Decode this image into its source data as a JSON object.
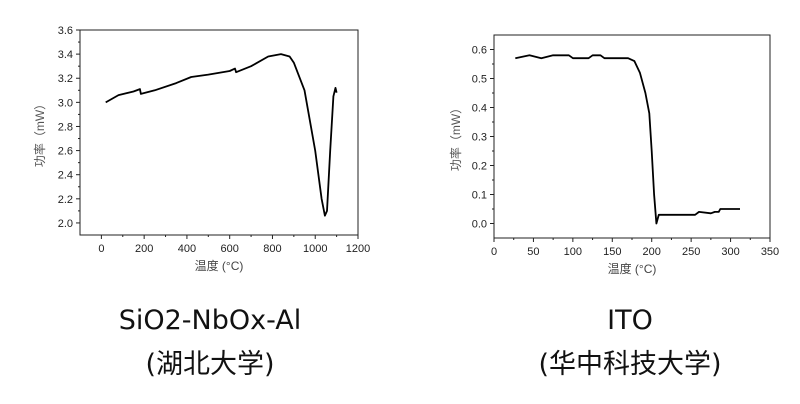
{
  "chart_data": [
    {
      "type": "line",
      "title": "SiO2-NbOx-Al",
      "subtitle": "(湖北大学)",
      "xlabel": "温度 (°C)",
      "ylabel": "功率（mW）",
      "xlim": [
        -100,
        1200
      ],
      "ylim": [
        1.9,
        3.6
      ],
      "xticks": [
        0,
        200,
        400,
        600,
        800,
        1000,
        1200
      ],
      "xtick_labels": [
        "0",
        "200",
        "400",
        "600",
        "800",
        "1000",
        "1200"
      ],
      "yticks": [
        2.0,
        2.2,
        2.4,
        2.6,
        2.8,
        3.0,
        3.2,
        3.4,
        3.6
      ],
      "ytick_labels": [
        "2.0",
        "2.2",
        "2.4",
        "2.6",
        "2.8",
        "3.0",
        "3.2",
        "3.4",
        "3.6"
      ],
      "grid": false,
      "series": [
        {
          "name": "SiO2-NbOx-Al",
          "color": "#000000",
          "x": [
            20,
            80,
            150,
            180,
            185,
            250,
            350,
            420,
            500,
            600,
            625,
            630,
            700,
            780,
            840,
            880,
            900,
            950,
            1000,
            1030,
            1045,
            1055,
            1070,
            1085,
            1095,
            1100
          ],
          "y": [
            3.0,
            3.06,
            3.09,
            3.11,
            3.07,
            3.1,
            3.16,
            3.21,
            3.23,
            3.26,
            3.28,
            3.25,
            3.3,
            3.38,
            3.4,
            3.38,
            3.33,
            3.1,
            2.6,
            2.2,
            2.06,
            2.1,
            2.6,
            3.05,
            3.12,
            3.08
          ]
        }
      ]
    },
    {
      "type": "line",
      "title": "ITO",
      "subtitle": "(华中科技大学)",
      "xlabel": "温度 (°C)",
      "ylabel": "功率（mW）",
      "xlim": [
        0,
        350
      ],
      "ylim": [
        -0.05,
        0.65
      ],
      "xticks": [
        0,
        50,
        100,
        150,
        200,
        250,
        300,
        350
      ],
      "xtick_labels": [
        "0",
        "50",
        "100",
        "150",
        "200",
        "250",
        "300",
        "350"
      ],
      "yticks": [
        0.0,
        0.1,
        0.2,
        0.3,
        0.4,
        0.5,
        0.6
      ],
      "ytick_labels": [
        "0.0",
        "0.1",
        "0.2",
        "0.3",
        "0.4",
        "0.5",
        "0.6"
      ],
      "grid": false,
      "series": [
        {
          "name": "ITO",
          "color": "#000000",
          "x": [
            27,
            45,
            60,
            75,
            95,
            100,
            120,
            125,
            135,
            140,
            170,
            178,
            185,
            192,
            197,
            200,
            203,
            206,
            209,
            255,
            260,
            275,
            280,
            285,
            287,
            312
          ],
          "y": [
            0.57,
            0.58,
            0.57,
            0.58,
            0.58,
            0.57,
            0.57,
            0.58,
            0.58,
            0.57,
            0.57,
            0.56,
            0.52,
            0.45,
            0.38,
            0.25,
            0.1,
            0.0,
            0.03,
            0.03,
            0.04,
            0.035,
            0.04,
            0.04,
            0.05,
            0.05
          ]
        }
      ]
    }
  ]
}
